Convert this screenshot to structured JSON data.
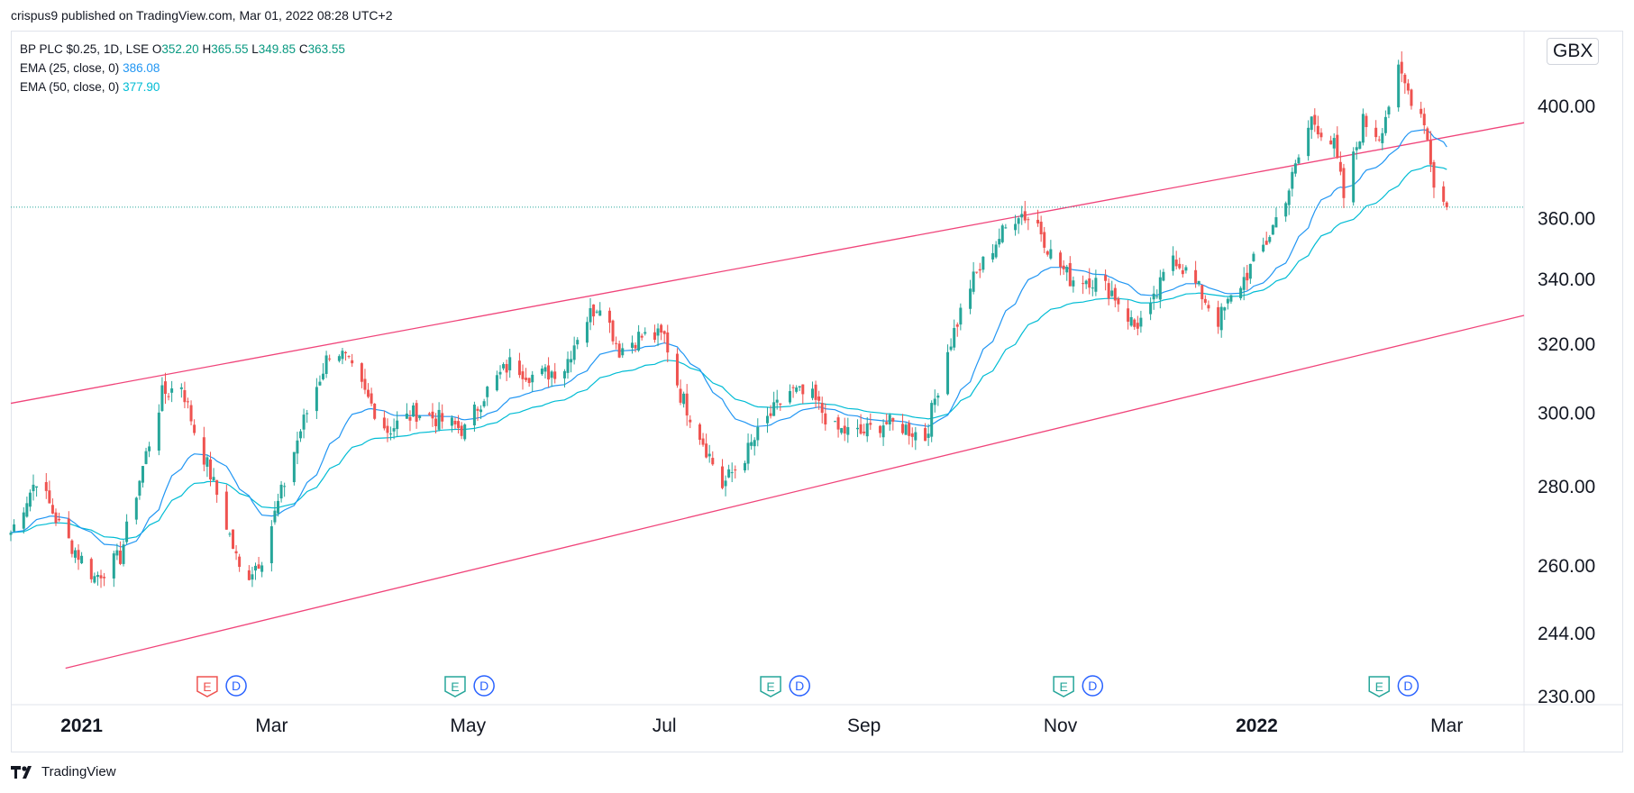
{
  "header": {
    "published_by": "crispus9 published on TradingView.com, Mar 01, 2022 08:28 UTC+2"
  },
  "legend": {
    "symbol": "BP PLC $0.25, 1D, LSE",
    "o_label": "O",
    "o_value": "352.20",
    "h_label": "H",
    "h_value": "365.55",
    "l_label": "L",
    "l_value": "349.85",
    "c_label": "C",
    "c_value": "363.55",
    "ema1_label": "EMA (25, close, 0)",
    "ema1_value": "386.08",
    "ema2_label": "EMA (50, close, 0)",
    "ema2_value": "377.90"
  },
  "currency": "GBX",
  "footer": {
    "brand": "TradingView"
  },
  "colors": {
    "up": "#26a69a",
    "down": "#ef5350",
    "ema25": "#2196f3",
    "ema50": "#00bcd4",
    "channel": "#f0447a",
    "event_e_up": "#26a69a",
    "event_e_down": "#ef5350",
    "event_d": "#2962ff"
  },
  "chart_data": {
    "type": "candlestick",
    "scale": "log",
    "x_range": [
      "2020-12-10",
      "2022-03-25"
    ],
    "ylim": [
      230,
      425
    ],
    "y_ticks": [
      "400.00",
      "360.00",
      "340.00",
      "320.00",
      "300.00",
      "280.00",
      "260.00",
      "244.00",
      "230.00"
    ],
    "y_tick_values": [
      400,
      360,
      340,
      320,
      300,
      280,
      260,
      244,
      230
    ],
    "x_ticks": [
      {
        "label": "2021",
        "date": "2021-01-01",
        "bold": true
      },
      {
        "label": "Mar",
        "date": "2021-03-01",
        "bold": false
      },
      {
        "label": "May",
        "date": "2021-05-01",
        "bold": false
      },
      {
        "label": "Jul",
        "date": "2021-07-01",
        "bold": false
      },
      {
        "label": "Sep",
        "date": "2021-09-01",
        "bold": false
      },
      {
        "label": "Nov",
        "date": "2021-11-01",
        "bold": false
      },
      {
        "label": "2022",
        "date": "2022-01-01",
        "bold": true
      },
      {
        "label": "Mar",
        "date": "2022-03-01",
        "bold": false
      }
    ],
    "last_price": 363.55,
    "channel_upper": [
      {
        "date": "2020-12-10",
        "value": 302.5
      },
      {
        "date": "2022-03-25",
        "value": 393.5
      }
    ],
    "channel_lower": [
      {
        "date": "2020-12-27",
        "value": 236.0
      },
      {
        "date": "2022-03-25",
        "value": 328.5
      }
    ],
    "close_path": [
      [
        "2020-12-10",
        268
      ],
      [
        "2020-12-18",
        282
      ],
      [
        "2020-12-26",
        268
      ],
      [
        "2021-01-05",
        257
      ],
      [
        "2021-01-13",
        262
      ],
      [
        "2021-01-20",
        285
      ],
      [
        "2021-01-26",
        305
      ],
      [
        "2021-02-01",
        308
      ],
      [
        "2021-02-05",
        295
      ],
      [
        "2021-02-10",
        283
      ],
      [
        "2021-02-15",
        270
      ],
      [
        "2021-02-20",
        256
      ],
      [
        "2021-02-26",
        262
      ],
      [
        "2021-03-04",
        278
      ],
      [
        "2021-03-10",
        295
      ],
      [
        "2021-03-16",
        310
      ],
      [
        "2021-03-20",
        320
      ],
      [
        "2021-03-24",
        315
      ],
      [
        "2021-03-30",
        305
      ],
      [
        "2021-04-06",
        295
      ],
      [
        "2021-04-15",
        300
      ],
      [
        "2021-04-22",
        298
      ],
      [
        "2021-04-30",
        295
      ],
      [
        "2021-05-06",
        305
      ],
      [
        "2021-05-14",
        314
      ],
      [
        "2021-05-22",
        310
      ],
      [
        "2021-05-31",
        313
      ],
      [
        "2021-06-05",
        325
      ],
      [
        "2021-06-11",
        333
      ],
      [
        "2021-06-17",
        318
      ],
      [
        "2021-06-23",
        322
      ],
      [
        "2021-07-01",
        322
      ],
      [
        "2021-07-06",
        305
      ],
      [
        "2021-07-12",
        294
      ],
      [
        "2021-07-19",
        280
      ],
      [
        "2021-07-26",
        288
      ],
      [
        "2021-08-02",
        298
      ],
      [
        "2021-08-09",
        306
      ],
      [
        "2021-08-16",
        304
      ],
      [
        "2021-08-23",
        295
      ],
      [
        "2021-08-31",
        294
      ],
      [
        "2021-09-07",
        297
      ],
      [
        "2021-09-13",
        296
      ],
      [
        "2021-09-20",
        293
      ],
      [
        "2021-09-27",
        318
      ],
      [
        "2021-10-04",
        338
      ],
      [
        "2021-10-12",
        352
      ],
      [
        "2021-10-19",
        362
      ],
      [
        "2021-10-25",
        358
      ],
      [
        "2021-10-29",
        348
      ],
      [
        "2021-11-04",
        340
      ],
      [
        "2021-11-10",
        340
      ],
      [
        "2021-11-17",
        336
      ],
      [
        "2021-11-24",
        325
      ],
      [
        "2021-11-29",
        330
      ],
      [
        "2021-12-06",
        348
      ],
      [
        "2021-12-13",
        338
      ],
      [
        "2021-12-20",
        327
      ],
      [
        "2021-12-28",
        340
      ],
      [
        "2022-01-04",
        352
      ],
      [
        "2022-01-11",
        370
      ],
      [
        "2022-01-18",
        395
      ],
      [
        "2022-01-25",
        385
      ],
      [
        "2022-01-28",
        367
      ],
      [
        "2022-02-03",
        394
      ],
      [
        "2022-02-08",
        389
      ],
      [
        "2022-02-14",
        412
      ],
      [
        "2022-02-18",
        403
      ],
      [
        "2022-02-22",
        395
      ],
      [
        "2022-02-25",
        372
      ],
      [
        "2022-03-01",
        363
      ]
    ],
    "events": [
      {
        "type": "E",
        "date": "2021-02-09",
        "style": "down"
      },
      {
        "type": "D",
        "date": "2021-02-18"
      },
      {
        "type": "E",
        "date": "2021-04-27",
        "style": "up"
      },
      {
        "type": "D",
        "date": "2021-05-06"
      },
      {
        "type": "E",
        "date": "2021-08-03",
        "style": "up"
      },
      {
        "type": "D",
        "date": "2021-08-12"
      },
      {
        "type": "E",
        "date": "2021-11-02",
        "style": "up"
      },
      {
        "type": "D",
        "date": "2021-11-11"
      },
      {
        "type": "E",
        "date": "2022-02-08",
        "style": "up"
      },
      {
        "type": "D",
        "date": "2022-02-17"
      }
    ]
  }
}
